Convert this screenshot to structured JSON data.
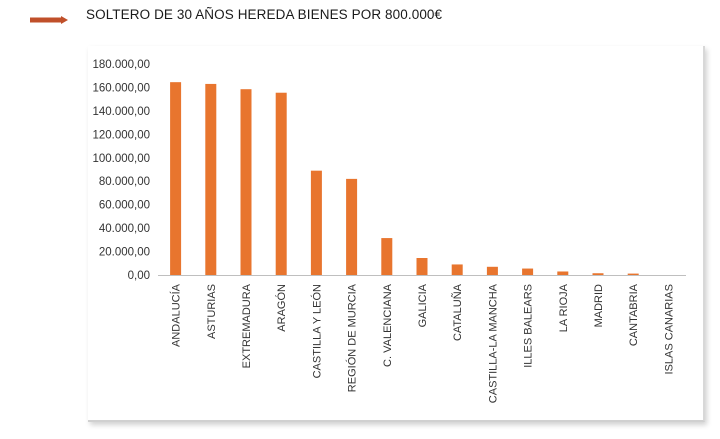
{
  "header": {
    "title": "SOLTERO DE 30 AÑOS HEREDA BIENES POR 800.000€",
    "arrow_icon": "right-arrow-icon",
    "arrow_color": "#c0502a"
  },
  "chart_data": {
    "type": "bar",
    "title": "",
    "xlabel": "",
    "ylabel": "",
    "ylim": [
      0,
      180000
    ],
    "yticks": [
      "0,00",
      "20.000,00",
      "40.000,00",
      "60.000,00",
      "80.000,00",
      "100.000,00",
      "120.000,00",
      "140.000,00",
      "160.000,00",
      "180.000,00"
    ],
    "grid": false,
    "bar_color": "#e8752e",
    "categories": [
      "ANDALUCÍA",
      "ASTURIAS",
      "EXTREMADURA",
      "ARAGÓN",
      "CASTILLA Y LEÓN",
      "REGIÓN DE MURCIA",
      "C. VALENCIANA",
      "GALICIA",
      "CATALUÑA",
      "CASTILLA-LA MANCHA",
      "ILLES BALEARS",
      "LA RIOJA",
      "MADRID",
      "CANTABRIA",
      "ISLAS CANARIAS"
    ],
    "values": [
      164500,
      163000,
      158500,
      155500,
      89000,
      82000,
      31500,
      14500,
      9000,
      7000,
      5500,
      3000,
      1500,
      1200,
      0
    ]
  }
}
